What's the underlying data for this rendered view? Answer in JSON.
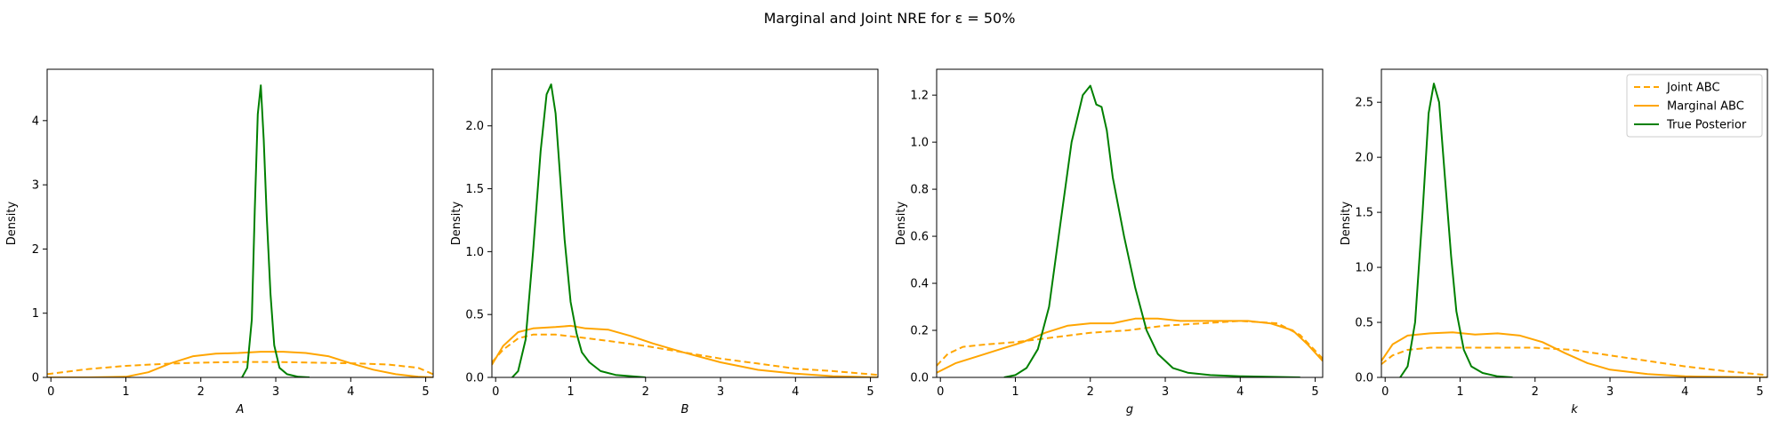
{
  "title": "Marginal and Joint NRE for ε =  50%",
  "legend": {
    "placement": "upper-right",
    "panel": 3,
    "entries": [
      {
        "label": "Joint ABC",
        "color": "#FFA500",
        "dash": "dashed"
      },
      {
        "label": "Marginal ABC",
        "color": "#FFA500",
        "dash": "solid"
      },
      {
        "label": "True Posterior",
        "color": "#008000",
        "dash": "solid"
      }
    ]
  },
  "chart_data": [
    {
      "type": "line",
      "xlabel": "A",
      "ylabel": "Density",
      "xlim": [
        -0.05,
        5.1
      ],
      "ylim": [
        0,
        4.8
      ],
      "xticks": [
        0,
        1,
        2,
        3,
        4,
        5
      ],
      "yticks": [
        0,
        1,
        2,
        3,
        4
      ],
      "grid": false,
      "series": [
        {
          "name": "Joint ABC",
          "color": "#FFA500",
          "dash": "dashed",
          "x": [
            -0.05,
            0.5,
            1,
            1.5,
            2,
            2.5,
            3,
            3.5,
            4,
            4.5,
            4.9,
            5.1
          ],
          "y": [
            0.05,
            0.13,
            0.18,
            0.21,
            0.23,
            0.24,
            0.24,
            0.23,
            0.22,
            0.2,
            0.15,
            0.05
          ]
        },
        {
          "name": "Marginal ABC",
          "color": "#FFA500",
          "dash": "solid",
          "x": [
            -0.05,
            0.5,
            1,
            1.3,
            1.6,
            1.9,
            2.2,
            2.5,
            2.8,
            3.1,
            3.4,
            3.7,
            4,
            4.3,
            4.6,
            4.9,
            5.1
          ],
          "y": [
            0,
            0,
            0.01,
            0.08,
            0.22,
            0.33,
            0.37,
            0.38,
            0.4,
            0.4,
            0.38,
            0.33,
            0.22,
            0.12,
            0.05,
            0.01,
            0
          ]
        },
        {
          "name": "True Posterior",
          "color": "#008000",
          "dash": "solid",
          "x": [
            2.55,
            2.62,
            2.68,
            2.72,
            2.76,
            2.8,
            2.84,
            2.88,
            2.93,
            2.98,
            3.05,
            3.15,
            3.3,
            3.45
          ],
          "y": [
            0,
            0.15,
            0.9,
            2.6,
            4.1,
            4.55,
            3.7,
            2.5,
            1.3,
            0.5,
            0.15,
            0.05,
            0.01,
            0
          ]
        }
      ]
    },
    {
      "type": "line",
      "xlabel": "B",
      "ylabel": "Density",
      "xlim": [
        -0.05,
        5.1
      ],
      "ylim": [
        0,
        2.45
      ],
      "xticks": [
        0,
        1,
        2,
        3,
        4,
        5
      ],
      "yticks": [
        0.0,
        0.5,
        1.0,
        1.5,
        2.0
      ],
      "grid": false,
      "series": [
        {
          "name": "Joint ABC",
          "color": "#FFA500",
          "dash": "dashed",
          "x": [
            -0.05,
            0.1,
            0.3,
            0.5,
            0.8,
            1.1,
            1.5,
            2,
            2.5,
            3,
            3.5,
            4,
            4.5,
            5.1
          ],
          "y": [
            0.12,
            0.22,
            0.31,
            0.34,
            0.34,
            0.32,
            0.29,
            0.25,
            0.2,
            0.15,
            0.11,
            0.07,
            0.05,
            0.02
          ]
        },
        {
          "name": "Marginal ABC",
          "color": "#FFA500",
          "dash": "solid",
          "x": [
            -0.05,
            0.1,
            0.3,
            0.5,
            0.8,
            1,
            1.2,
            1.5,
            1.8,
            2.1,
            2.5,
            3,
            3.5,
            4,
            4.5,
            5.1
          ],
          "y": [
            0.1,
            0.25,
            0.36,
            0.39,
            0.4,
            0.41,
            0.39,
            0.38,
            0.33,
            0.27,
            0.2,
            0.12,
            0.06,
            0.03,
            0.01,
            0
          ]
        },
        {
          "name": "True Posterior",
          "color": "#008000",
          "dash": "solid",
          "x": [
            0.22,
            0.3,
            0.4,
            0.5,
            0.6,
            0.68,
            0.74,
            0.8,
            0.86,
            0.92,
            1,
            1.08,
            1.15,
            1.25,
            1.4,
            1.6,
            1.8,
            2
          ],
          "y": [
            0,
            0.05,
            0.3,
            1.0,
            1.8,
            2.25,
            2.33,
            2.1,
            1.6,
            1.1,
            0.6,
            0.35,
            0.2,
            0.12,
            0.05,
            0.02,
            0.01,
            0
          ]
        }
      ]
    },
    {
      "type": "line",
      "xlabel": "g",
      "ylabel": "Density",
      "xlim": [
        -0.05,
        5.1
      ],
      "ylim": [
        0,
        1.31
      ],
      "xticks": [
        0,
        1,
        2,
        3,
        4,
        5
      ],
      "yticks": [
        0.0,
        0.2,
        0.4,
        0.6,
        0.8,
        1.0,
        1.2
      ],
      "grid": false,
      "series": [
        {
          "name": "Joint ABC",
          "color": "#FFA500",
          "dash": "dashed",
          "x": [
            -0.05,
            0.1,
            0.3,
            0.6,
            1,
            1.5,
            2,
            2.5,
            3,
            3.5,
            4,
            4.5,
            4.8,
            5.1
          ],
          "y": [
            0.05,
            0.1,
            0.13,
            0.14,
            0.15,
            0.17,
            0.19,
            0.2,
            0.22,
            0.23,
            0.24,
            0.23,
            0.18,
            0.08
          ]
        },
        {
          "name": "Marginal ABC",
          "color": "#FFA500",
          "dash": "solid",
          "x": [
            -0.05,
            0.2,
            0.5,
            0.8,
            1.1,
            1.4,
            1.7,
            2,
            2.3,
            2.6,
            2.9,
            3.2,
            3.5,
            3.8,
            4.1,
            4.4,
            4.7,
            4.9,
            5.1
          ],
          "y": [
            0.02,
            0.06,
            0.09,
            0.12,
            0.15,
            0.19,
            0.22,
            0.23,
            0.23,
            0.25,
            0.25,
            0.24,
            0.24,
            0.24,
            0.24,
            0.23,
            0.2,
            0.14,
            0.07
          ]
        },
        {
          "name": "True Posterior",
          "color": "#008000",
          "dash": "solid",
          "x": [
            0.85,
            1,
            1.15,
            1.3,
            1.45,
            1.6,
            1.75,
            1.9,
            2,
            2.08,
            2.15,
            2.22,
            2.3,
            2.45,
            2.6,
            2.75,
            2.9,
            3.1,
            3.3,
            3.6,
            4,
            4.5,
            4.8
          ],
          "y": [
            0,
            0.01,
            0.04,
            0.12,
            0.3,
            0.65,
            1.0,
            1.2,
            1.24,
            1.16,
            1.15,
            1.05,
            0.85,
            0.6,
            0.38,
            0.2,
            0.1,
            0.04,
            0.02,
            0.01,
            0.005,
            0.002,
            0
          ]
        }
      ]
    },
    {
      "type": "line",
      "xlabel": "k",
      "ylabel": "Density",
      "xlim": [
        -0.05,
        5.1
      ],
      "ylim": [
        0,
        2.8
      ],
      "xticks": [
        0,
        1,
        2,
        3,
        4,
        5
      ],
      "yticks": [
        0.0,
        0.5,
        1.0,
        1.5,
        2.0,
        2.5
      ],
      "grid": false,
      "series": [
        {
          "name": "Joint ABC",
          "color": "#FFA500",
          "dash": "dashed",
          "x": [
            -0.05,
            0.1,
            0.3,
            0.6,
            1,
            1.5,
            2,
            2.5,
            3,
            3.5,
            4,
            4.5,
            5.1
          ],
          "y": [
            0.12,
            0.2,
            0.25,
            0.27,
            0.27,
            0.27,
            0.27,
            0.25,
            0.2,
            0.15,
            0.1,
            0.06,
            0.02
          ]
        },
        {
          "name": "Marginal ABC",
          "color": "#FFA500",
          "dash": "solid",
          "x": [
            -0.05,
            0.1,
            0.3,
            0.6,
            0.9,
            1.2,
            1.5,
            1.8,
            2.1,
            2.4,
            2.7,
            3,
            3.5,
            4,
            4.5,
            5.1
          ],
          "y": [
            0.15,
            0.3,
            0.38,
            0.4,
            0.41,
            0.39,
            0.4,
            0.38,
            0.32,
            0.22,
            0.13,
            0.07,
            0.03,
            0.01,
            0.005,
            0
          ]
        },
        {
          "name": "True Posterior",
          "color": "#008000",
          "dash": "solid",
          "x": [
            0.2,
            0.3,
            0.4,
            0.5,
            0.58,
            0.65,
            0.72,
            0.8,
            0.88,
            0.95,
            1.05,
            1.15,
            1.3,
            1.5,
            1.7
          ],
          "y": [
            0,
            0.1,
            0.5,
            1.5,
            2.4,
            2.67,
            2.5,
            1.8,
            1.1,
            0.6,
            0.25,
            0.1,
            0.04,
            0.01,
            0
          ]
        }
      ]
    }
  ]
}
